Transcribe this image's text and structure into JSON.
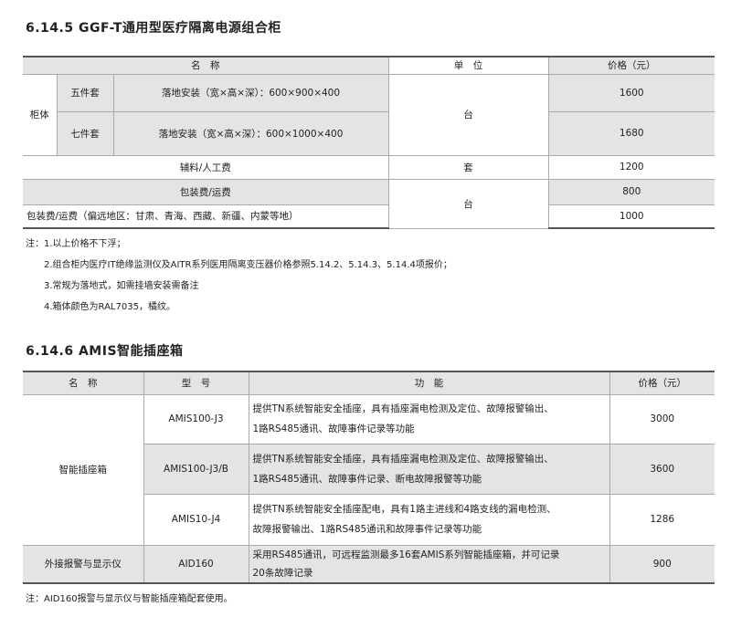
{
  "section1": {
    "title": "6.14.5  GGF-T通用型医疗隔离电源组合柜",
    "headers": [
      "名　称",
      "单　位",
      "价格（元）"
    ],
    "group": "柜体",
    "rows": [
      {
        "type": "五件套",
        "desc": "落地安装（宽×高×深）：600×900×400",
        "price": "1600"
      },
      {
        "type": "七件套",
        "desc": "落地安装（宽×高×深）：600×1000×400",
        "price": "1680"
      }
    ],
    "unit_tai": "台",
    "aux": {
      "name": "辅料/人工费",
      "unit": "套",
      "price": "1200"
    },
    "pack": {
      "name": "包装费/运费",
      "price": "800"
    },
    "pack_remote": {
      "name": "包装费/运费（偏远地区：甘肃、青海、西藏、新疆、内蒙等地）",
      "price": "1000"
    },
    "unit_tai2": "台",
    "notes": [
      "注：1.以上价格不下浮；",
      "2.组合柜内医疗IT绝缘监测仪及AITR系列医用隔离变压器价格参照5.14.2、5.14.3、5.14.4项报价；",
      "3.常规为落地式，如需挂墙安装需备注",
      "4.箱体颜色为RAL7035，橘纹。"
    ]
  },
  "section2": {
    "title": "6.14.6  AMIS智能插座箱",
    "headers": [
      "名　称",
      "型　号",
      "功　能",
      "价格（元）"
    ],
    "group": "智能插座箱",
    "rows": [
      {
        "model": "AMIS100-J3",
        "f1": "提供TN系统智能安全插座，具有插座漏电检测及定位、故障报警输出、",
        "f2": "1路RS485通讯、故障事件记录等功能",
        "price": "3000"
      },
      {
        "model": "AMIS100-J3/B",
        "f1": "提供TN系统智能安全插座，具有插座漏电检测及定位、故障报警输出、",
        "f2": "1路RS485通讯、故障事件记录、断电故障报警等功能",
        "price": "3600"
      },
      {
        "model": "AMIS10-J4",
        "f1": "提供TN系统智能安全插座配电，具有1路主进线和4路支线的漏电检测、",
        "f2": "故障报警输出、1路RS485通讯和故障事件记录等功能",
        "price": "1286"
      }
    ],
    "display": {
      "name": "外接报警与显示仪",
      "model": "AID160",
      "f1": "采用RS485通讯，可远程监测最多16套AMIS系列智能插座箱，并可记录",
      "f2": "20条故障记录",
      "price": "900"
    },
    "note": "注：AID160报警与显示仪与智能插座箱配套使用。"
  }
}
